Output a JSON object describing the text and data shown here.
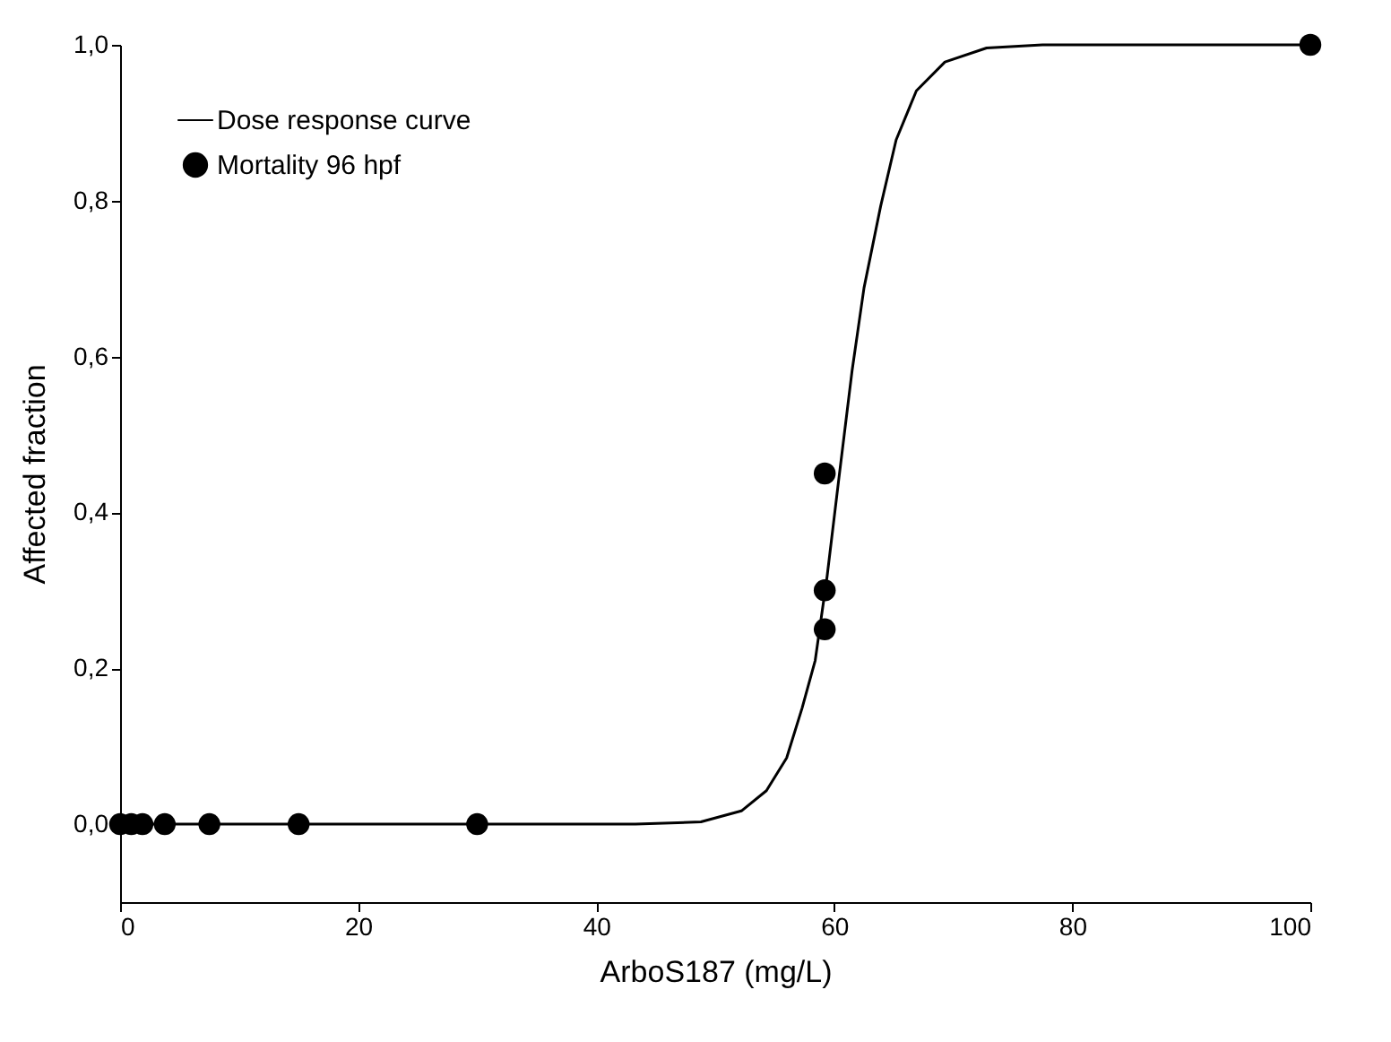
{
  "chart_data": {
    "type": "scatter",
    "xlabel": "ArboS187 (mg/L)",
    "ylabel": "Affected fraction",
    "xlim": [
      0,
      100
    ],
    "xticks": [
      0,
      20,
      40,
      60,
      80,
      100
    ],
    "ylim": [
      -0.1,
      1.0
    ],
    "yticks": [
      {
        "value": 0,
        "label": "0,0"
      },
      {
        "value": 0.2,
        "label": "0,2"
      },
      {
        "value": 0.4,
        "label": "0,4"
      },
      {
        "value": 0.6,
        "label": "0,6"
      },
      {
        "value": 0.8,
        "label": "0,8"
      },
      {
        "value": 1.0,
        "label": "1,0"
      }
    ],
    "grid": false,
    "legend": "top left",
    "series": [
      {
        "name": "Dose response curve",
        "type": "line",
        "color": "#000000",
        "line_style": "solid",
        "marker": "none",
        "x": [
          0,
          43.3,
          48.8,
          52.2,
          54.3,
          56.0,
          57.3,
          58.4,
          59.4,
          60.4,
          61.5,
          62.5,
          63.9,
          65.2,
          66.9,
          69.3,
          72.8,
          77.5,
          100
        ],
        "values": [
          0,
          0,
          0.003,
          0.017,
          0.043,
          0.085,
          0.149,
          0.21,
          0.318,
          0.445,
          0.582,
          0.688,
          0.793,
          0.878,
          0.941,
          0.978,
          0.996,
          1.0,
          1.0
        ]
      },
      {
        "name": "Mortality 96 hpf",
        "color": "#000000",
        "marker": "circle",
        "x": [
          0,
          0.94,
          1.88,
          3.75,
          7.5,
          15,
          30,
          59.2,
          59.2,
          59.2,
          100
        ],
        "values": [
          0,
          0,
          0,
          0,
          0,
          0,
          0,
          0.45,
          0.3,
          0.25,
          1.0
        ]
      }
    ]
  }
}
